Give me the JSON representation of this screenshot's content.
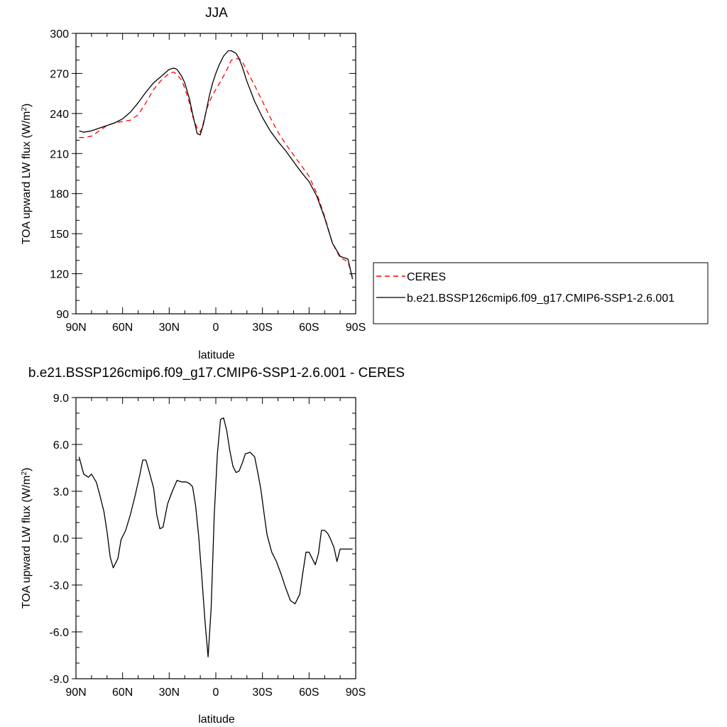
{
  "chart_data": [
    {
      "type": "line",
      "title": "JJA",
      "xlabel": "latitude",
      "ylabel": "TOA upward LW flux (W/m",
      "ylabel_sup": "2",
      "ylabel_end": ")",
      "xlim": [
        90,
        -90
      ],
      "ylim": [
        90,
        300
      ],
      "x_ticks": [
        90,
        60,
        30,
        0,
        -30,
        -60,
        -90
      ],
      "x_tick_labels": [
        "90N",
        "60N",
        "30N",
        "0",
        "30S",
        "60S",
        "90S"
      ],
      "y_ticks": [
        90,
        120,
        150,
        180,
        210,
        240,
        270,
        300
      ],
      "y_tick_labels": [
        "90",
        "120",
        "150",
        "180",
        "210",
        "240",
        "270",
        "300"
      ],
      "legend_position": "right",
      "grid": false,
      "series": [
        {
          "name": "CERES",
          "color": "#ff0000",
          "dash": "dashed",
          "x": [
            88,
            85,
            80,
            75,
            70,
            65,
            60,
            55,
            50,
            45,
            40,
            35,
            30,
            27,
            25,
            22,
            20,
            17,
            15,
            12,
            10,
            8,
            6,
            4,
            2,
            0,
            -2,
            -5,
            -8,
            -10,
            -13,
            -15,
            -17,
            -20,
            -25,
            -30,
            -35,
            -40,
            -45,
            -50,
            -55,
            -60,
            -65,
            -70,
            -75,
            -80,
            -85,
            -88
          ],
          "values": [
            222,
            222,
            223,
            227,
            231,
            233,
            234,
            235,
            239,
            248,
            258,
            265,
            270,
            271,
            269,
            265,
            259,
            248,
            238,
            229,
            226,
            233,
            243,
            249,
            254,
            258,
            262,
            268,
            275,
            280,
            281,
            281,
            279,
            272,
            261,
            249,
            237,
            226,
            217,
            209,
            201,
            193,
            180,
            163,
            143,
            132,
            129,
            117
          ]
        },
        {
          "name": "b.e21.BSSP126cmip6.f09_g17.CMIP6-SSP1-2.6.001",
          "color": "#000000",
          "dash": "solid",
          "x": [
            88,
            85,
            80,
            75,
            70,
            65,
            60,
            55,
            50,
            45,
            40,
            35,
            30,
            27,
            25,
            22,
            20,
            17,
            15,
            12,
            10,
            8,
            6,
            4,
            2,
            0,
            -2,
            -5,
            -8,
            -10,
            -13,
            -15,
            -17,
            -20,
            -25,
            -30,
            -35,
            -40,
            -45,
            -50,
            -55,
            -60,
            -65,
            -70,
            -75,
            -80,
            -85,
            -88
          ],
          "values": [
            227,
            226,
            227,
            229,
            231,
            233,
            236,
            241,
            248,
            256,
            263,
            268,
            273,
            274,
            273,
            268,
            263,
            251,
            240,
            225,
            224,
            232,
            243,
            254,
            263,
            270,
            276,
            283,
            287,
            287,
            285,
            281,
            275,
            264,
            249,
            237,
            227,
            219,
            212,
            204,
            196,
            189,
            178,
            162,
            143,
            133,
            131,
            116
          ]
        }
      ]
    },
    {
      "type": "line",
      "title": "b.e21.BSSP126cmip6.f09_g17.CMIP6-SSP1-2.6.001 - CERES",
      "xlabel": "latitude",
      "ylabel": "TOA upward LW flux (W/m",
      "ylabel_sup": "2",
      "ylabel_end": ")",
      "xlim": [
        90,
        -90
      ],
      "ylim": [
        -9,
        9
      ],
      "x_ticks": [
        90,
        60,
        30,
        0,
        -30,
        -60,
        -90
      ],
      "x_tick_labels": [
        "90N",
        "60N",
        "30N",
        "0",
        "30S",
        "60S",
        "90S"
      ],
      "y_ticks": [
        -9,
        -6,
        -3,
        0,
        3,
        6,
        9
      ],
      "y_tick_labels": [
        "-9.0",
        "-6.0",
        "-3.0",
        "0.0",
        "3.0",
        "6.0",
        "9.0"
      ],
      "grid": false,
      "series": [
        {
          "color": "#000000",
          "dash": "solid",
          "x": [
            88,
            85,
            82,
            80,
            77,
            75,
            72,
            70,
            68,
            66,
            63,
            61,
            58,
            55,
            52,
            49,
            47,
            45,
            43,
            40,
            38,
            36,
            34,
            31,
            28,
            25,
            22,
            19,
            17,
            15,
            13,
            11,
            9,
            7,
            5,
            3,
            1,
            -1,
            -3,
            -5,
            -7,
            -9,
            -11,
            -13,
            -15,
            -17,
            -19,
            -22,
            -25,
            -27,
            -29,
            -31,
            -33,
            -36,
            -39,
            -42,
            -45,
            -48,
            -51,
            -54,
            -56,
            -58,
            -60,
            -62,
            -64,
            -66,
            -68,
            -70,
            -72,
            -74,
            -76,
            -78,
            -80,
            -82,
            -84,
            -86,
            -88
          ],
          "values": [
            5.2,
            4.1,
            3.9,
            4.1,
            3.6,
            2.9,
            1.7,
            0.4,
            -1.2,
            -1.9,
            -1.3,
            -0.1,
            0.5,
            1.5,
            2.7,
            4.0,
            5.0,
            5.0,
            4.3,
            3.2,
            1.5,
            0.6,
            0.7,
            2.2,
            3.0,
            3.7,
            3.6,
            3.6,
            3.5,
            3.3,
            2.1,
            0.1,
            -2.5,
            -5.3,
            -7.6,
            -4.5,
            1.5,
            5.4,
            7.6,
            7.7,
            6.9,
            5.6,
            4.6,
            4.2,
            4.3,
            4.8,
            5.4,
            5.5,
            5.2,
            4.2,
            3.1,
            1.6,
            0.2,
            -0.9,
            -1.5,
            -2.3,
            -3.2,
            -4.0,
            -4.2,
            -3.6,
            -2.2,
            -0.9,
            -0.9,
            -1.3,
            -1.7,
            -1.0,
            0.5,
            0.5,
            0.3,
            -0.1,
            -0.6,
            -1.5,
            -0.7,
            -0.7,
            -0.7,
            -0.7,
            -0.7
          ]
        }
      ]
    }
  ]
}
